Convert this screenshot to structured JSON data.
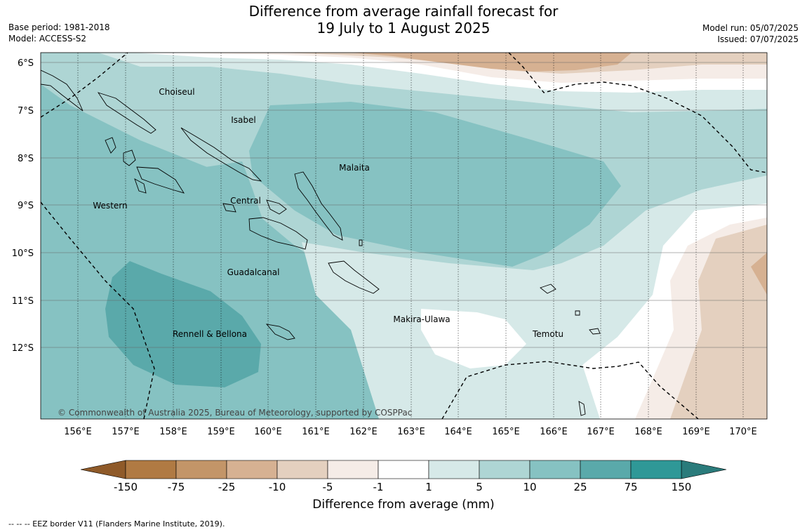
{
  "title": {
    "line1": "Difference from average rainfall forecast for",
    "line2": "19 July to 1 August 2025"
  },
  "meta": {
    "base_period": "Base period: 1981-2018",
    "model": "Model: ACCESS-S2",
    "model_run": "Model run: 05/07/2025",
    "issued": "Issued: 07/07/2025"
  },
  "axes": {
    "lat_labels": [
      "6°S",
      "7°S",
      "8°S",
      "9°S",
      "10°S",
      "11°S",
      "12°S"
    ],
    "lon_labels": [
      "156°E",
      "157°E",
      "158°E",
      "159°E",
      "160°E",
      "161°E",
      "162°E",
      "163°E",
      "164°E",
      "165°E",
      "166°E",
      "167°E",
      "168°E",
      "169°E",
      "170°E"
    ]
  },
  "regions": [
    {
      "name": "Choiseul"
    },
    {
      "name": "Isabel"
    },
    {
      "name": "Malaita"
    },
    {
      "name": "Western"
    },
    {
      "name": "Central"
    },
    {
      "name": "Guadalcanal"
    },
    {
      "name": "Makira-Ulawa"
    },
    {
      "name": "Temotu"
    },
    {
      "name": "Rennell & Bellona"
    }
  ],
  "copyright": "© Commonwealth of Australia 2025, Bureau of Meteorology, supported by COSPPac",
  "colorbar": {
    "title": "Difference from average (mm)",
    "ticks": [
      "-150",
      "-75",
      "-25",
      "-10",
      "-5",
      "-1",
      "1",
      "5",
      "10",
      "25",
      "75",
      "150"
    ],
    "colors": [
      "#b07a43",
      "#c39568",
      "#d6b192",
      "#e4d0bf",
      "#f5ece7",
      "#ffffff",
      "#d6e9e8",
      "#aed5d4",
      "#86c2c2",
      "#5aa9aa",
      "#2f9897"
    ],
    "extend_low_color": "#8f5a29",
    "extend_high_color": "#2a7b7b"
  },
  "eez_note": "-- -- -- EEZ border V11 (Flanders Marine Institute, 2019)."
}
